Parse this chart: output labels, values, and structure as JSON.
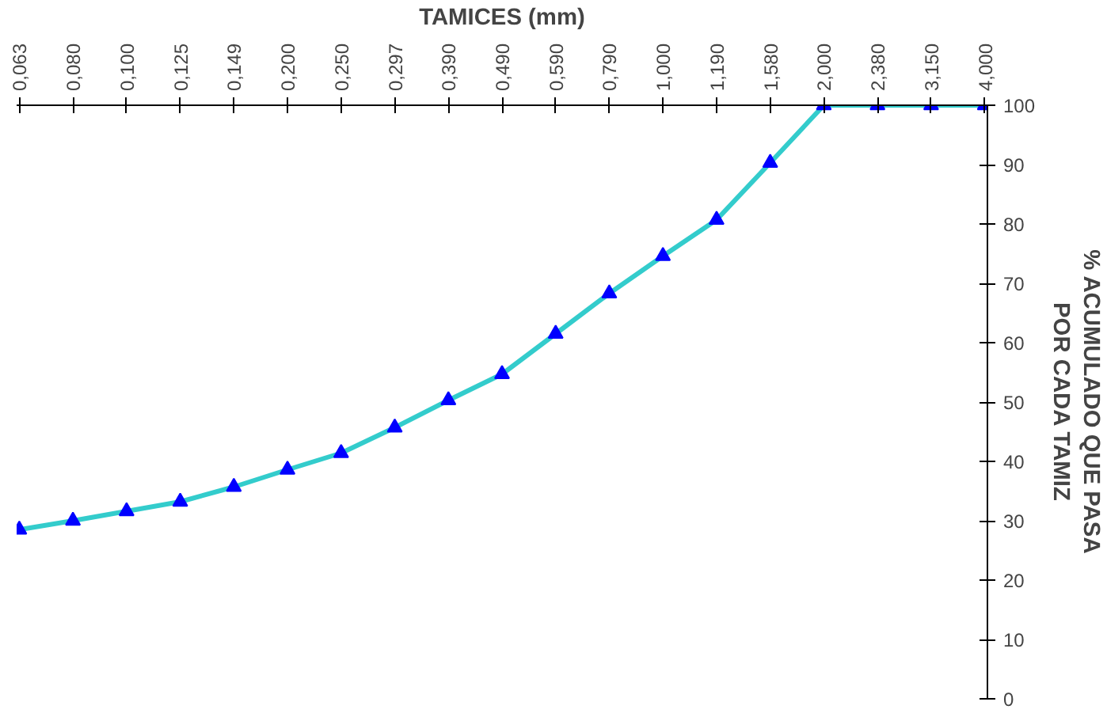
{
  "chart_data": {
    "type": "line",
    "xlabel": "TAMICES (mm)",
    "ylabel": "% ACUMULADO QUE PASA\nPOR CADA TAMIZ",
    "categories": [
      "0,063",
      "0,080",
      "0,100",
      "0,125",
      "0,149",
      "0,200",
      "0,250",
      "0,297",
      "0,390",
      "0,490",
      "0,590",
      "0,790",
      "1,000",
      "1,190",
      "1,580",
      "2,000",
      "2,380",
      "3,150",
      "4,000"
    ],
    "series": [
      {
        "color": "#33cccc",
        "values": [
          28.5,
          30,
          31.6,
          33.2,
          35.7,
          38.6,
          41.4,
          45.7,
          50.3,
          54.7,
          61.5,
          68.3,
          74.6,
          80.7,
          90.3,
          100,
          100,
          100,
          100
        ]
      }
    ],
    "ylim": [
      0,
      100
    ],
    "yticks": [
      0,
      10,
      20,
      30,
      40,
      50,
      60,
      70,
      80,
      90,
      100
    ],
    "marker": "triangle",
    "line_style": "solid",
    "grid": false
  }
}
